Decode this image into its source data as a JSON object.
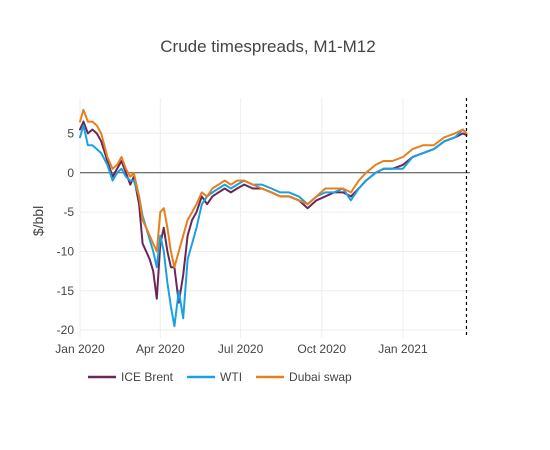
{
  "chart_data": {
    "type": "line",
    "title": "Crude timespreads, M1-M12",
    "xlabel": "",
    "ylabel": "$/bbl",
    "x_ticks": [
      {
        "date": "2020-01-01",
        "label": "Jan 2020"
      },
      {
        "date": "2020-04-01",
        "label": "Apr 2020"
      },
      {
        "date": "2020-07-01",
        "label": "Jul 2020"
      },
      {
        "date": "2020-10-01",
        "label": "Oct 2020"
      },
      {
        "date": "2021-01-01",
        "label": "Jan 2021"
      }
    ],
    "xlim": [
      "2020-01-01",
      "2021-03-18"
    ],
    "y_ticks": [
      5,
      0,
      -5,
      -10,
      -15,
      -20
    ],
    "ylim": [
      -21,
      9.5
    ],
    "grid": true,
    "zero_line": true,
    "vertical_marker": "2021-03-14",
    "legend_position": "bottom-left",
    "series": [
      {
        "name": "ICE Brent",
        "color": "#6b2757",
        "points": [
          [
            "2020-01-01",
            5.5
          ],
          [
            "2020-01-05",
            6.5
          ],
          [
            "2020-01-10",
            5.0
          ],
          [
            "2020-01-15",
            5.5
          ],
          [
            "2020-01-20",
            5.0
          ],
          [
            "2020-01-25",
            4.0
          ],
          [
            "2020-02-01",
            1.5
          ],
          [
            "2020-02-07",
            -0.5
          ],
          [
            "2020-02-12",
            0.5
          ],
          [
            "2020-02-17",
            1.5
          ],
          [
            "2020-02-22",
            0.0
          ],
          [
            "2020-02-27",
            -1.5
          ],
          [
            "2020-03-02",
            -0.5
          ],
          [
            "2020-03-08",
            -4.0
          ],
          [
            "2020-03-12",
            -9.0
          ],
          [
            "2020-03-16",
            -10.0
          ],
          [
            "2020-03-20",
            -11.0
          ],
          [
            "2020-03-24",
            -12.5
          ],
          [
            "2020-03-28",
            -16.0
          ],
          [
            "2020-04-01",
            -9.0
          ],
          [
            "2020-04-05",
            -7.0
          ],
          [
            "2020-04-09",
            -10.0
          ],
          [
            "2020-04-13",
            -12.0
          ],
          [
            "2020-04-17",
            -12.0
          ],
          [
            "2020-04-22",
            -16.5
          ],
          [
            "2020-04-27",
            -13.0
          ],
          [
            "2020-05-02",
            -8.0
          ],
          [
            "2020-05-07",
            -6.0
          ],
          [
            "2020-05-12",
            -5.0
          ],
          [
            "2020-05-18",
            -3.0
          ],
          [
            "2020-05-24",
            -4.0
          ],
          [
            "2020-05-30",
            -3.0
          ],
          [
            "2020-06-06",
            -2.5
          ],
          [
            "2020-06-13",
            -2.0
          ],
          [
            "2020-06-20",
            -2.5
          ],
          [
            "2020-06-27",
            -2.0
          ],
          [
            "2020-07-05",
            -1.5
          ],
          [
            "2020-07-15",
            -2.0
          ],
          [
            "2020-07-25",
            -2.0
          ],
          [
            "2020-08-05",
            -2.5
          ],
          [
            "2020-08-15",
            -3.0
          ],
          [
            "2020-08-25",
            -3.0
          ],
          [
            "2020-09-05",
            -3.5
          ],
          [
            "2020-09-15",
            -4.5
          ],
          [
            "2020-09-25",
            -3.5
          ],
          [
            "2020-10-05",
            -3.0
          ],
          [
            "2020-10-15",
            -2.5
          ],
          [
            "2020-10-25",
            -2.5
          ],
          [
            "2020-11-03",
            -3.0
          ],
          [
            "2020-11-12",
            -2.0
          ],
          [
            "2020-11-20",
            -1.0
          ],
          [
            "2020-12-01",
            0.0
          ],
          [
            "2020-12-10",
            0.5
          ],
          [
            "2020-12-20",
            0.5
          ],
          [
            "2021-01-01",
            1.0
          ],
          [
            "2021-01-12",
            2.0
          ],
          [
            "2021-01-24",
            2.5
          ],
          [
            "2021-02-05",
            3.0
          ],
          [
            "2021-02-17",
            4.0
          ],
          [
            "2021-03-01",
            4.5
          ],
          [
            "2021-03-10",
            5.0
          ],
          [
            "2021-03-14",
            4.8
          ]
        ]
      },
      {
        "name": "WTI",
        "color": "#1ba1e2",
        "points": [
          [
            "2020-01-01",
            4.5
          ],
          [
            "2020-01-05",
            6.0
          ],
          [
            "2020-01-10",
            3.5
          ],
          [
            "2020-01-15",
            3.5
          ],
          [
            "2020-01-20",
            3.0
          ],
          [
            "2020-01-25",
            2.5
          ],
          [
            "2020-02-01",
            1.0
          ],
          [
            "2020-02-07",
            -1.0
          ],
          [
            "2020-02-12",
            0.0
          ],
          [
            "2020-02-17",
            0.5
          ],
          [
            "2020-02-22",
            -0.5
          ],
          [
            "2020-02-27",
            -1.0
          ],
          [
            "2020-03-02",
            -1.0
          ],
          [
            "2020-03-08",
            -3.0
          ],
          [
            "2020-03-12",
            -5.5
          ],
          [
            "2020-03-16",
            -7.0
          ],
          [
            "2020-03-20",
            -8.5
          ],
          [
            "2020-03-24",
            -10.0
          ],
          [
            "2020-03-28",
            -12.0
          ],
          [
            "2020-04-01",
            -8.0
          ],
          [
            "2020-04-05",
            -10.0
          ],
          [
            "2020-04-09",
            -14.0
          ],
          [
            "2020-04-13",
            -17.0
          ],
          [
            "2020-04-17",
            -19.5
          ],
          [
            "2020-04-22",
            -15.0
          ],
          [
            "2020-04-27",
            -18.5
          ],
          [
            "2020-05-02",
            -11.0
          ],
          [
            "2020-05-07",
            -9.0
          ],
          [
            "2020-05-12",
            -7.0
          ],
          [
            "2020-05-18",
            -4.0
          ],
          [
            "2020-05-24",
            -3.0
          ],
          [
            "2020-05-30",
            -2.5
          ],
          [
            "2020-06-06",
            -2.0
          ],
          [
            "2020-06-13",
            -1.5
          ],
          [
            "2020-06-20",
            -2.0
          ],
          [
            "2020-06-27",
            -1.5
          ],
          [
            "2020-07-05",
            -1.0
          ],
          [
            "2020-07-15",
            -1.5
          ],
          [
            "2020-07-25",
            -1.5
          ],
          [
            "2020-08-05",
            -2.0
          ],
          [
            "2020-08-15",
            -2.5
          ],
          [
            "2020-08-25",
            -2.5
          ],
          [
            "2020-09-05",
            -3.0
          ],
          [
            "2020-09-15",
            -4.0
          ],
          [
            "2020-09-25",
            -3.0
          ],
          [
            "2020-10-05",
            -2.5
          ],
          [
            "2020-10-15",
            -2.5
          ],
          [
            "2020-10-25",
            -2.0
          ],
          [
            "2020-11-03",
            -3.5
          ],
          [
            "2020-11-12",
            -2.0
          ],
          [
            "2020-11-20",
            -1.0
          ],
          [
            "2020-12-01",
            0.0
          ],
          [
            "2020-12-10",
            0.5
          ],
          [
            "2020-12-20",
            0.5
          ],
          [
            "2021-01-01",
            0.5
          ],
          [
            "2021-01-12",
            2.0
          ],
          [
            "2021-01-24",
            2.5
          ],
          [
            "2021-02-05",
            3.0
          ],
          [
            "2021-02-17",
            4.0
          ],
          [
            "2021-03-01",
            4.5
          ],
          [
            "2021-03-10",
            5.5
          ],
          [
            "2021-03-14",
            5.0
          ]
        ]
      },
      {
        "name": "Dubai swap",
        "color": "#e5801c",
        "points": [
          [
            "2020-01-01",
            6.5
          ],
          [
            "2020-01-05",
            8.0
          ],
          [
            "2020-01-10",
            6.5
          ],
          [
            "2020-01-15",
            6.5
          ],
          [
            "2020-01-20",
            6.0
          ],
          [
            "2020-01-25",
            5.0
          ],
          [
            "2020-02-01",
            2.0
          ],
          [
            "2020-02-07",
            0.5
          ],
          [
            "2020-02-12",
            1.0
          ],
          [
            "2020-02-17",
            2.0
          ],
          [
            "2020-02-22",
            0.5
          ],
          [
            "2020-02-27",
            -0.5
          ],
          [
            "2020-03-02",
            0.0
          ],
          [
            "2020-03-08",
            -3.0
          ],
          [
            "2020-03-12",
            -6.0
          ],
          [
            "2020-03-16",
            -7.0
          ],
          [
            "2020-03-20",
            -8.0
          ],
          [
            "2020-03-24",
            -9.0
          ],
          [
            "2020-03-28",
            -10.0
          ],
          [
            "2020-04-01",
            -5.0
          ],
          [
            "2020-04-05",
            -4.5
          ],
          [
            "2020-04-09",
            -7.0
          ],
          [
            "2020-04-13",
            -10.0
          ],
          [
            "2020-04-17",
            -12.0
          ],
          [
            "2020-04-22",
            -10.0
          ],
          [
            "2020-04-27",
            -8.0
          ],
          [
            "2020-05-02",
            -6.0
          ],
          [
            "2020-05-07",
            -5.0
          ],
          [
            "2020-05-12",
            -4.0
          ],
          [
            "2020-05-18",
            -2.5
          ],
          [
            "2020-05-24",
            -3.0
          ],
          [
            "2020-05-30",
            -2.0
          ],
          [
            "2020-06-06",
            -1.5
          ],
          [
            "2020-06-13",
            -1.0
          ],
          [
            "2020-06-20",
            -1.5
          ],
          [
            "2020-06-27",
            -1.0
          ],
          [
            "2020-07-05",
            -1.0
          ],
          [
            "2020-07-15",
            -1.5
          ],
          [
            "2020-07-25",
            -2.0
          ],
          [
            "2020-08-05",
            -2.5
          ],
          [
            "2020-08-15",
            -3.0
          ],
          [
            "2020-08-25",
            -3.0
          ],
          [
            "2020-09-05",
            -3.5
          ],
          [
            "2020-09-15",
            -4.0
          ],
          [
            "2020-09-25",
            -3.0
          ],
          [
            "2020-10-05",
            -2.0
          ],
          [
            "2020-10-15",
            -2.0
          ],
          [
            "2020-10-25",
            -2.0
          ],
          [
            "2020-11-03",
            -2.5
          ],
          [
            "2020-11-12",
            -1.0
          ],
          [
            "2020-11-20",
            0.0
          ],
          [
            "2020-12-01",
            1.0
          ],
          [
            "2020-12-10",
            1.5
          ],
          [
            "2020-12-20",
            1.5
          ],
          [
            "2021-01-01",
            2.0
          ],
          [
            "2021-01-12",
            3.0
          ],
          [
            "2021-01-24",
            3.5
          ],
          [
            "2021-02-05",
            3.5
          ],
          [
            "2021-02-17",
            4.5
          ],
          [
            "2021-03-01",
            5.0
          ],
          [
            "2021-03-10",
            5.5
          ],
          [
            "2021-03-14",
            5.0
          ]
        ]
      }
    ]
  }
}
